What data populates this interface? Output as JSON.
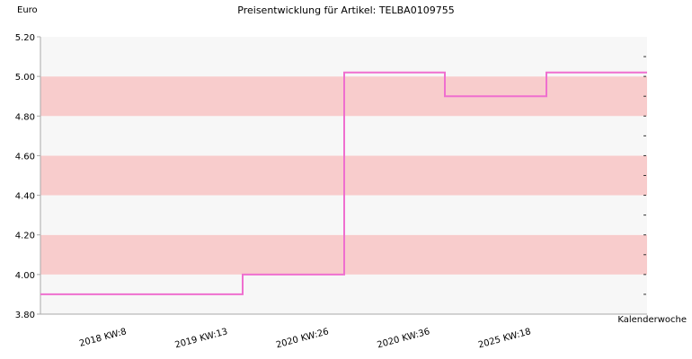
{
  "chart_data": {
    "type": "line",
    "step": true,
    "title": "Preisentwicklung für Artikel: TELBA0109755",
    "ylabel": "Euro",
    "xlabel": "Kalenderwoche",
    "ylim": [
      3.8,
      5.2
    ],
    "y_ticks": [
      "3.80",
      "4.00",
      "4.20",
      "4.40",
      "4.60",
      "4.80",
      "5.00",
      "5.20"
    ],
    "x_tick_labels": [
      "2018 KW:8",
      "2019 KW:13",
      "2020 KW:26",
      "2020 KW:36",
      "2025 KW:18"
    ],
    "series": [
      {
        "x": [
          "2018 KW:8",
          "2019 KW:13",
          "2020 KW:26",
          "2020 KW:36",
          "2025 KW:18"
        ],
        "values": [
          3.9,
          4.0,
          5.02,
          4.9,
          5.02
        ]
      }
    ],
    "grid": true,
    "band_colors": [
      "#f7f7f7",
      "#f8cccc"
    ],
    "line_color": "#ef6fcf",
    "axis_color": "#aaaaaa"
  }
}
